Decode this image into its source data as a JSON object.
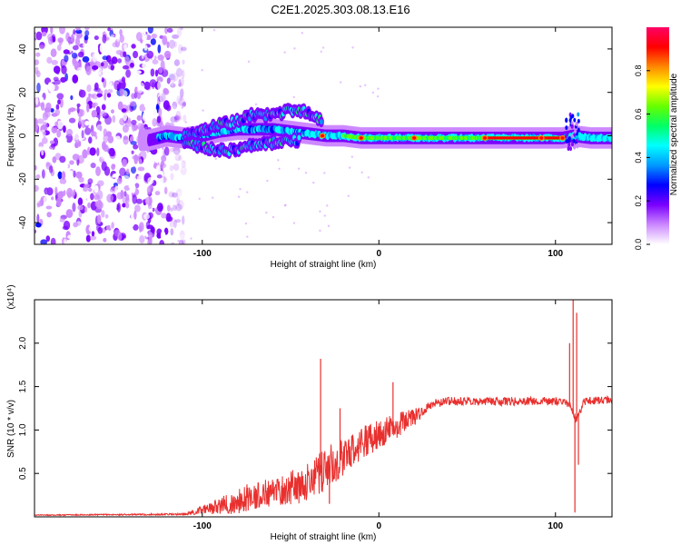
{
  "title": "C2E1.2025.303.08.13.E16",
  "chart_data": [
    {
      "type": "heatmap",
      "title": "C2E1.2025.303.08.13.E16",
      "xlabel": "Height of straight line (km)",
      "ylabel": "Frequency (Hz)",
      "xlim": [
        -195,
        132
      ],
      "ylim": [
        -50,
        50
      ],
      "xticks": [
        {
          "v": -100,
          "label": "-100"
        },
        {
          "v": 0,
          "label": "0"
        },
        {
          "v": 100,
          "label": "100"
        }
      ],
      "yticks": [
        {
          "v": 40,
          "label": "40"
        },
        {
          "v": 20,
          "label": "20"
        },
        {
          "v": 0,
          "label": "0"
        },
        {
          "v": -20,
          "label": "-20"
        },
        {
          "v": -40,
          "label": "-40"
        }
      ],
      "colorbar": {
        "label": "Normalized spectral amplitude",
        "range": [
          0,
          1
        ],
        "ticks": [
          {
            "v": 0.0,
            "label": "0.0"
          },
          {
            "v": 0.2,
            "label": "0.2"
          },
          {
            "v": 0.4,
            "label": "0.4"
          },
          {
            "v": 0.6,
            "label": "0.6"
          },
          {
            "v": 0.8,
            "label": "0.8"
          }
        ],
        "colors": [
          "#ffffff",
          "#cc88ff",
          "#7a00ff",
          "#0000ff",
          "#0099ff",
          "#00ffff",
          "#00ff66",
          "#66ff00",
          "#ffff00",
          "#ff8800",
          "#ff0000",
          "#ff0066"
        ]
      },
      "noise_region_x": [
        -195,
        -118
      ],
      "band_center_points": [
        {
          "x": -130,
          "y": -2
        },
        {
          "x": -120,
          "y": 0
        },
        {
          "x": -110,
          "y": -1
        },
        {
          "x": -100,
          "y": 0
        },
        {
          "x": -90,
          "y": 2
        },
        {
          "x": -80,
          "y": 3
        },
        {
          "x": -70,
          "y": 3
        },
        {
          "x": -60,
          "y": 3
        },
        {
          "x": -50,
          "y": 2
        },
        {
          "x": -40,
          "y": 1
        },
        {
          "x": -30,
          "y": 0
        },
        {
          "x": -20,
          "y": 0
        },
        {
          "x": -10,
          "y": -1
        },
        {
          "x": 0,
          "y": -1
        },
        {
          "x": 20,
          "y": -1
        },
        {
          "x": 50,
          "y": -1
        },
        {
          "x": 80,
          "y": -1
        },
        {
          "x": 104,
          "y": -1
        },
        {
          "x": 110,
          "y": 0
        },
        {
          "x": 120,
          "y": -1
        },
        {
          "x": 132,
          "y": -1
        }
      ],
      "upper_branch_points": [
        {
          "x": -110,
          "y": 0
        },
        {
          "x": -95,
          "y": 4
        },
        {
          "x": -80,
          "y": 7
        },
        {
          "x": -70,
          "y": 10
        },
        {
          "x": -60,
          "y": 9
        },
        {
          "x": -50,
          "y": 12
        },
        {
          "x": -40,
          "y": 11
        },
        {
          "x": -32,
          "y": 7
        }
      ],
      "lower_branch_points": [
        {
          "x": -110,
          "y": -3
        },
        {
          "x": -95,
          "y": -6
        },
        {
          "x": -85,
          "y": -7
        },
        {
          "x": -75,
          "y": -5
        },
        {
          "x": -60,
          "y": -3
        },
        {
          "x": -45,
          "y": -2
        }
      ],
      "hot_spots": [
        {
          "x": -32,
          "y": 0
        },
        {
          "x": -10,
          "y": -1
        },
        {
          "x": 20,
          "y": -1
        },
        {
          "x": 60,
          "y": -1
        },
        {
          "x": 92,
          "y": -1
        },
        {
          "x": 104,
          "y": -1
        }
      ]
    },
    {
      "type": "line",
      "xlabel": "Height of straight line (km)",
      "ylabel": "SNR (10 * v/v)",
      "yscale_label": "(x10⁴)",
      "xlim": [
        -195,
        132
      ],
      "ylim": [
        0,
        2.5
      ],
      "xticks": [
        {
          "v": -100,
          "label": "-100"
        },
        {
          "v": 0,
          "label": "0"
        },
        {
          "v": 100,
          "label": "100"
        }
      ],
      "yticks": [
        {
          "v": 0.5,
          "label": "0.5"
        },
        {
          "v": 1.0,
          "label": "1.0"
        },
        {
          "v": 1.5,
          "label": "1.5"
        },
        {
          "v": 2.0,
          "label": "2.0"
        }
      ],
      "color": "#e8302e",
      "series_envelope": {
        "baseline_points": [
          {
            "x": -195,
            "y": 0.02
          },
          {
            "x": -110,
            "y": 0.03
          },
          {
            "x": -100,
            "y": 0.08
          },
          {
            "x": -85,
            "y": 0.15
          },
          {
            "x": -70,
            "y": 0.25
          },
          {
            "x": -55,
            "y": 0.3
          },
          {
            "x": -40,
            "y": 0.4
          },
          {
            "x": -30,
            "y": 0.55
          },
          {
            "x": -20,
            "y": 0.7
          },
          {
            "x": -10,
            "y": 0.85
          },
          {
            "x": 0,
            "y": 0.95
          },
          {
            "x": 10,
            "y": 1.05
          },
          {
            "x": 20,
            "y": 1.15
          },
          {
            "x": 30,
            "y": 1.3
          },
          {
            "x": 40,
            "y": 1.33
          },
          {
            "x": 60,
            "y": 1.33
          },
          {
            "x": 80,
            "y": 1.33
          },
          {
            "x": 100,
            "y": 1.33
          },
          {
            "x": 108,
            "y": 1.3
          },
          {
            "x": 112,
            "y": 1.1
          },
          {
            "x": 116,
            "y": 1.33
          },
          {
            "x": 132,
            "y": 1.35
          }
        ],
        "noise_amplitude": [
          {
            "x": -195,
            "y": 0.005
          },
          {
            "x": -110,
            "y": 0.01
          },
          {
            "x": -100,
            "y": 0.05
          },
          {
            "x": -80,
            "y": 0.15
          },
          {
            "x": -50,
            "y": 0.2
          },
          {
            "x": -30,
            "y": 0.25
          },
          {
            "x": -10,
            "y": 0.2
          },
          {
            "x": 10,
            "y": 0.15
          },
          {
            "x": 30,
            "y": 0.05
          },
          {
            "x": 100,
            "y": 0.05
          },
          {
            "x": 132,
            "y": 0.04
          }
        ]
      },
      "spikes": [
        {
          "x": -33,
          "y": 1.82
        },
        {
          "x": -28,
          "y": 0.15
        },
        {
          "x": -22,
          "y": 1.25
        },
        {
          "x": 8,
          "y": 1.55
        },
        {
          "x": 108,
          "y": 2.0
        },
        {
          "x": 110,
          "y": 2.5
        },
        {
          "x": 111,
          "y": 0.05
        },
        {
          "x": 112,
          "y": 2.35
        },
        {
          "x": 113,
          "y": 0.6
        }
      ]
    }
  ]
}
